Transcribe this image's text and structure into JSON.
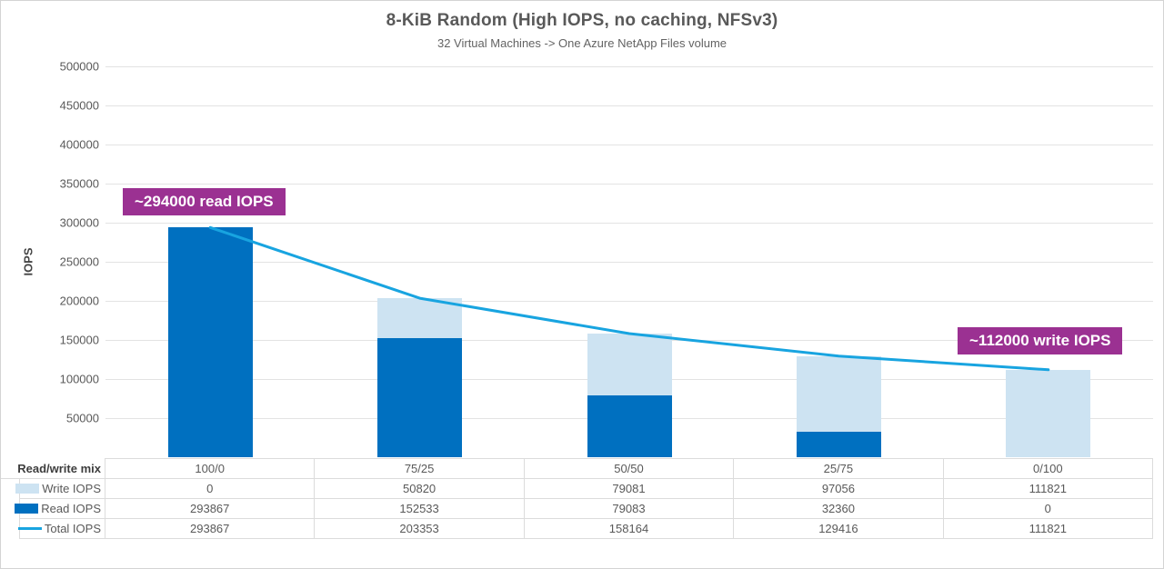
{
  "chart": {
    "title": "8-KiB Random (High IOPS, no caching, NFSv3)",
    "subtitle": "32 Virtual Machines -> One Azure NetApp Files volume",
    "y_axis_label": "IOPS"
  },
  "annotations": [
    {
      "text": "~294000 read IOPS",
      "anchor": "first read bar top"
    },
    {
      "text": "~112000 write IOPS",
      "anchor": "last write bar top"
    }
  ],
  "colors": {
    "read_bar": "#0070c0",
    "write_bar": "#cde3f2",
    "total_line": "#18a4e0",
    "annotation_bg": "#9b3192",
    "gridline": "#e3e3e3"
  },
  "chart_data": {
    "type": "bar",
    "subtype": "stacked-with-line-overlay",
    "title": "8-KiB Random (High IOPS, no caching, NFSv3)",
    "subtitle": "32 Virtual Machines -> One Azure NetApp Files volume",
    "xlabel": "Read/write mix",
    "ylabel": "IOPS",
    "ylim": [
      0,
      500000
    ],
    "ytick_step": 50000,
    "grid": true,
    "legend_position": "data-table-left",
    "categories": [
      "100/0",
      "75/25",
      "50/50",
      "25/75",
      "0/100"
    ],
    "series": [
      {
        "name": "Write IOPS",
        "kind": "bar",
        "values": [
          0,
          50820,
          79081,
          97056,
          111821
        ]
      },
      {
        "name": "Read IOPS",
        "kind": "bar",
        "values": [
          293867,
          152533,
          79083,
          32360,
          0
        ]
      },
      {
        "name": "Total IOPS",
        "kind": "line",
        "values": [
          293867,
          203353,
          158164,
          129416,
          111821
        ]
      }
    ]
  },
  "table": {
    "row_header": "Read/write mix"
  }
}
